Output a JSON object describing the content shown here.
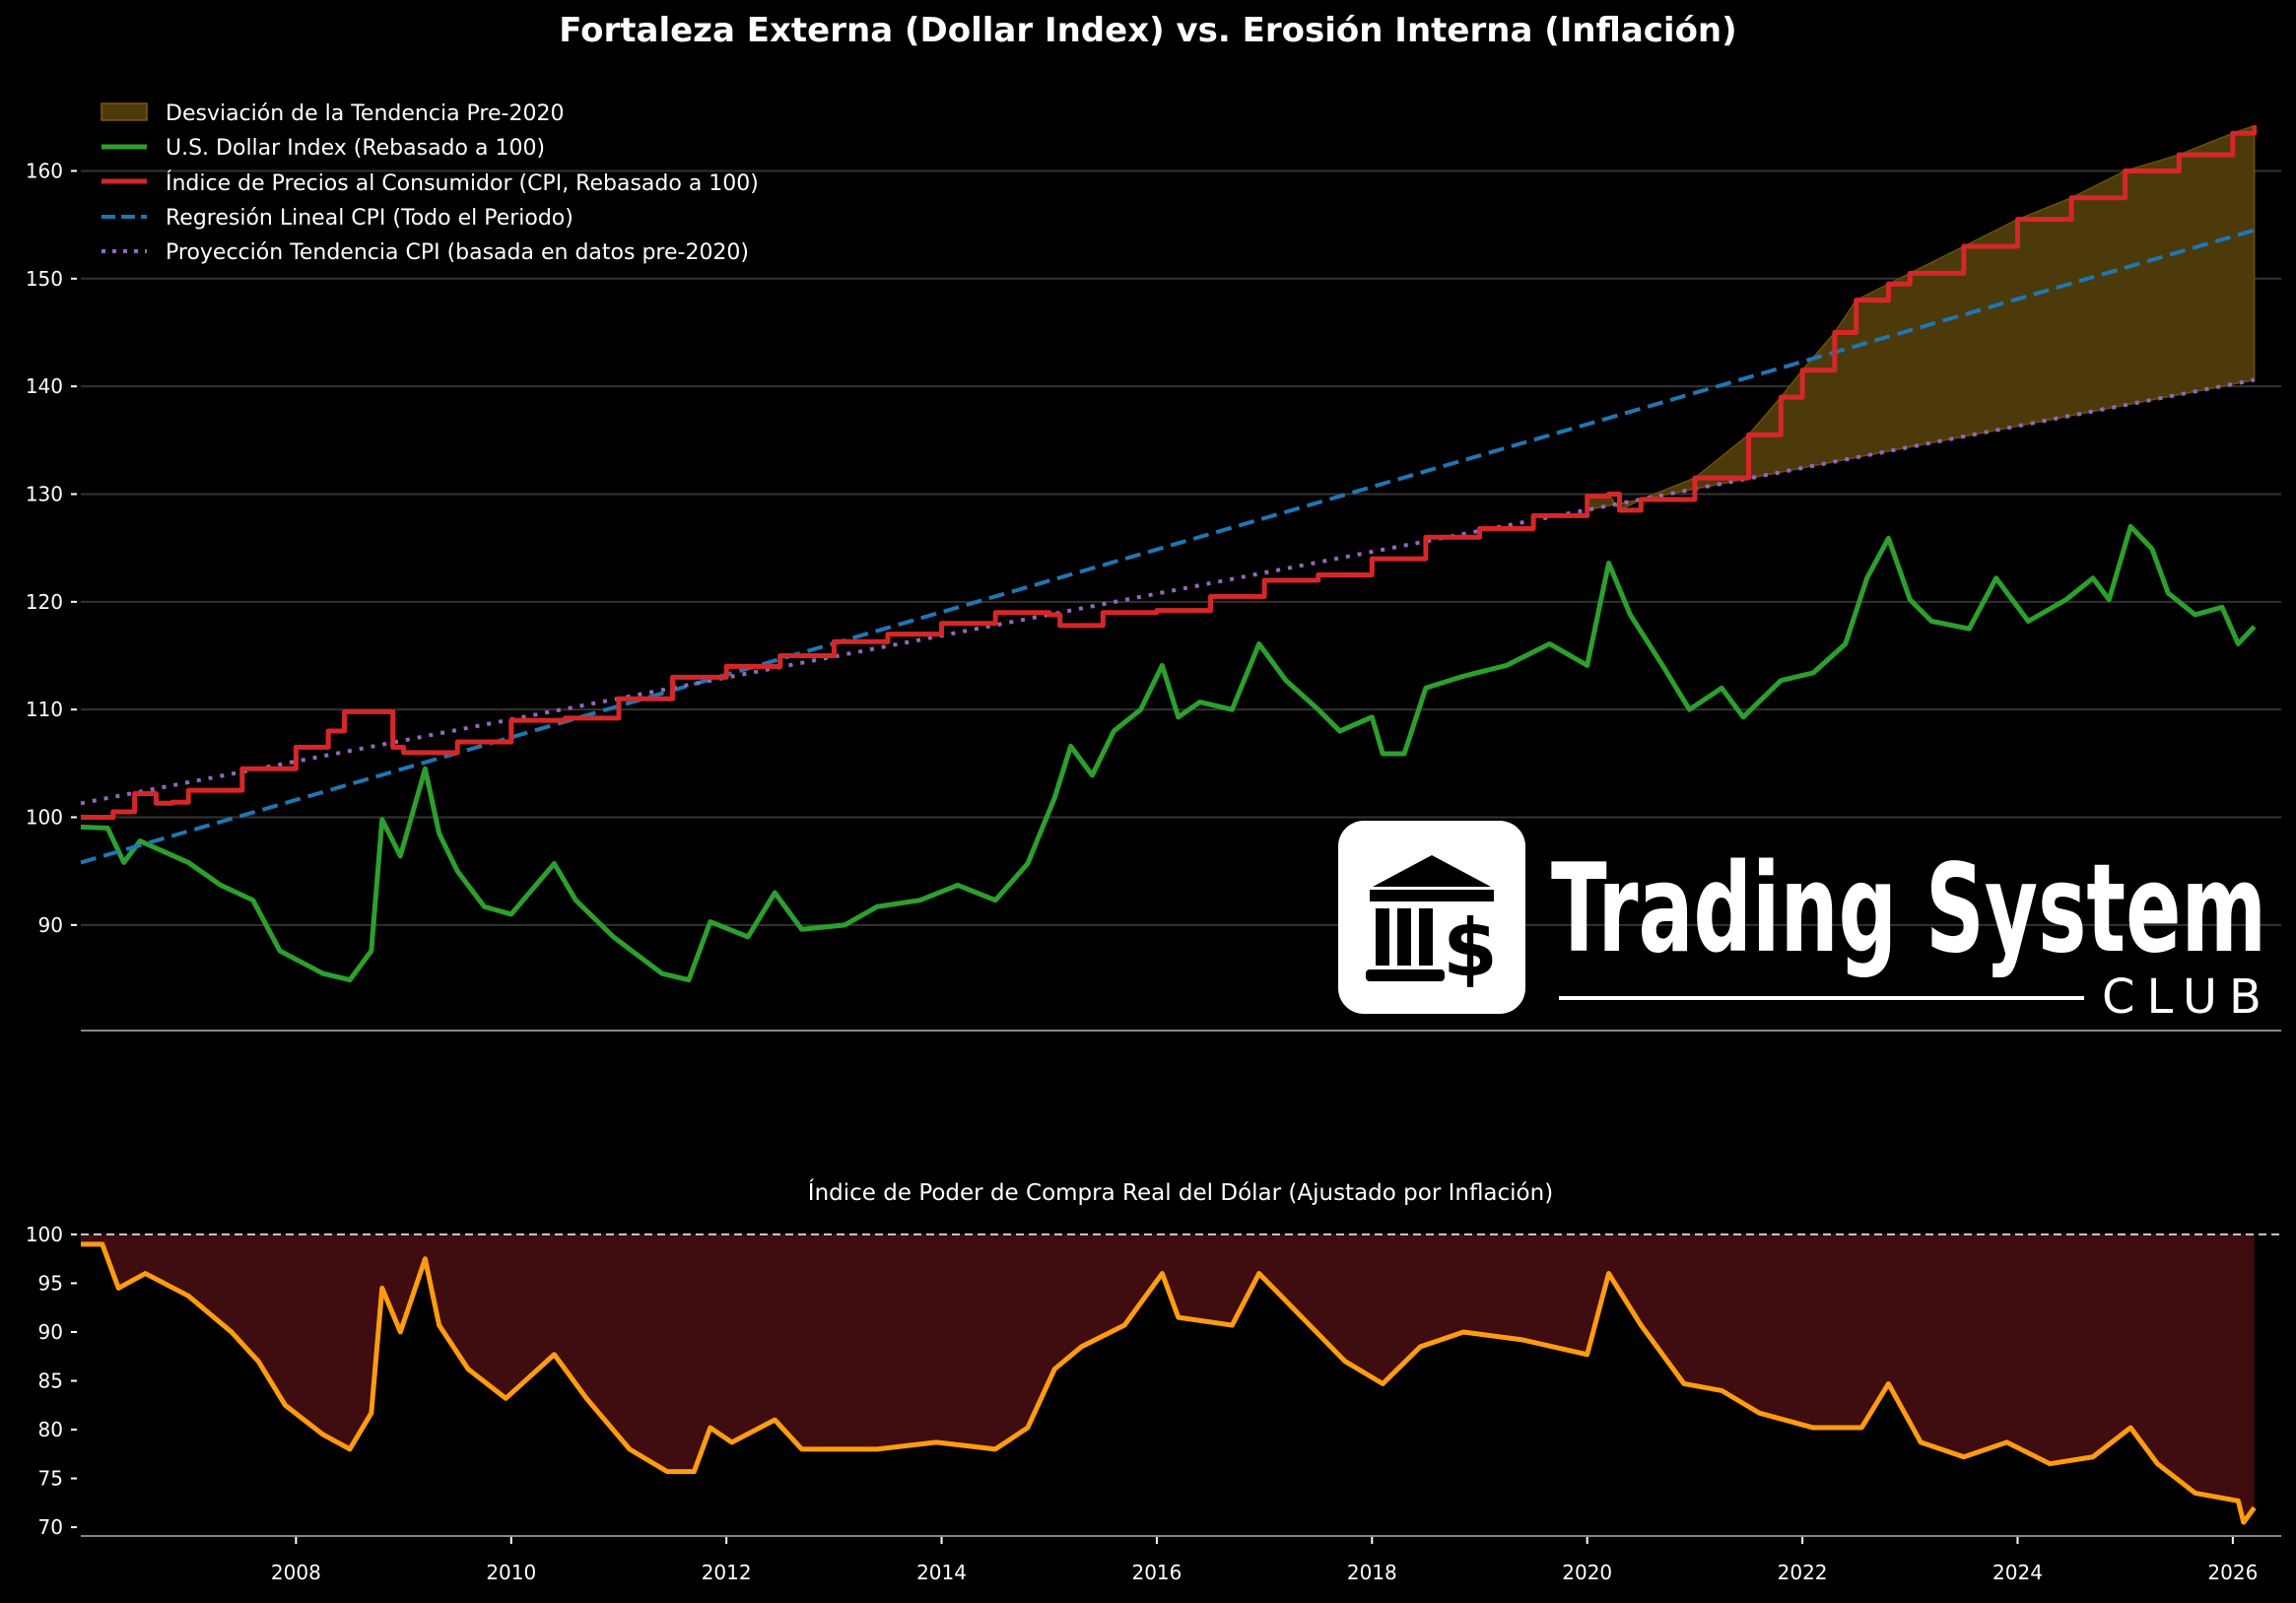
{
  "chart_data": [
    {
      "type": "line",
      "title": "Fortaleza Externa (Dollar Index) vs. Erosión Interna (Inflación)",
      "xlabel": "",
      "ylabel": "",
      "xlim": [
        2006.0,
        2026.45
      ],
      "ylim": [
        80.2,
        168
      ],
      "yticks": [
        90,
        100,
        110,
        120,
        130,
        140,
        150,
        160
      ],
      "grid": true,
      "legend_position": "top-left",
      "legend": [
        "Desviación de la Tendencia Pre-2020",
        "U.S. Dollar Index (Rebasado a 100)",
        "Índice de Precios al Consumidor (CPI, Rebasado a 100)",
        "Regresión Lineal CPI (Todo el Periodo)",
        "Proyección Tendencia CPI (basada en datos pre-2020)"
      ],
      "fill_between": {
        "name": "Desviación de la Tendencia Pre-2020",
        "from": 2020.0,
        "between": [
          "cpi",
          "trend_pre2020"
        ],
        "color": "#4d3a0a"
      },
      "series": [
        {
          "id": "dxy",
          "name": "U.S. Dollar Index (Rebasado a 100)",
          "color": "#2ca02c",
          "style": "solid",
          "x": [
            2006.0,
            2006.25,
            2006.4,
            2006.55,
            2007.0,
            2007.3,
            2007.6,
            2007.85,
            2008.25,
            2008.5,
            2008.7,
            2008.8,
            2008.97,
            2009.2,
            2009.33,
            2009.5,
            2009.75,
            2010.0,
            2010.4,
            2010.6,
            2010.95,
            2011.4,
            2011.65,
            2011.85,
            2012.2,
            2012.45,
            2012.7,
            2013.1,
            2013.4,
            2013.8,
            2014.15,
            2014.5,
            2014.8,
            2015.05,
            2015.2,
            2015.4,
            2015.6,
            2015.85,
            2016.05,
            2016.2,
            2016.4,
            2016.7,
            2016.95,
            2017.2,
            2017.5,
            2017.7,
            2018.0,
            2018.1,
            2018.3,
            2018.5,
            2018.85,
            2019.25,
            2019.65,
            2020.0,
            2020.2,
            2020.4,
            2020.7,
            2020.95,
            2021.25,
            2021.45,
            2021.8,
            2022.1,
            2022.4,
            2022.6,
            2022.8,
            2023.0,
            2023.2,
            2023.55,
            2023.8,
            2024.1,
            2024.45,
            2024.7,
            2024.85,
            2025.05,
            2025.25,
            2025.4,
            2025.65,
            2025.9,
            2026.05,
            2026.2
          ],
          "y": [
            99.1,
            99.0,
            95.8,
            97.8,
            95.8,
            93.7,
            92.3,
            87.6,
            85.5,
            84.9,
            87.6,
            99.8,
            96.4,
            104.5,
            98.5,
            95.0,
            91.7,
            91.0,
            95.7,
            92.3,
            88.9,
            85.5,
            84.9,
            90.3,
            88.9,
            93.0,
            89.6,
            90.0,
            91.7,
            92.3,
            93.7,
            92.3,
            95.7,
            101.8,
            106.6,
            103.9,
            108.0,
            110.0,
            114.1,
            109.3,
            110.7,
            110.0,
            116.1,
            112.7,
            110.0,
            108.0,
            109.3,
            105.9,
            105.9,
            112.0,
            113.1,
            114.1,
            116.1,
            114.1,
            123.6,
            118.8,
            114.1,
            110.0,
            112.0,
            109.3,
            112.7,
            113.4,
            116.1,
            122.2,
            125.9,
            120.2,
            118.2,
            117.5,
            122.2,
            118.2,
            120.2,
            122.2,
            120.2,
            127.0,
            124.9,
            120.8,
            118.8,
            119.5,
            116.1,
            117.7
          ]
        },
        {
          "id": "cpi",
          "name": "Índice de Precios al Consumidor (CPI, Rebasado a 100)",
          "color": "#d62728",
          "style": "solid",
          "x": [
            2006.0,
            2006.3,
            2006.5,
            2006.7,
            2006.85,
            2007.0,
            2007.5,
            2008.0,
            2008.3,
            2008.45,
            2008.7,
            2008.9,
            2009.0,
            2009.5,
            2010.0,
            2010.5,
            2011.0,
            2011.5,
            2012.0,
            2012.5,
            2013.0,
            2013.5,
            2014.0,
            2014.5,
            2015.0,
            2015.1,
            2015.5,
            2016.0,
            2016.5,
            2017.0,
            2017.5,
            2018.0,
            2018.5,
            2019.0,
            2019.5,
            2020.0,
            2020.2,
            2020.3,
            2020.5,
            2021.0,
            2021.5,
            2021.8,
            2022.0,
            2022.3,
            2022.5,
            2022.8,
            2023.0,
            2023.5,
            2024.0,
            2024.5,
            2025.0,
            2025.5,
            2026.0,
            2026.2
          ],
          "y": [
            100.0,
            100.5,
            102.2,
            101.3,
            101.4,
            102.5,
            104.5,
            106.5,
            108.0,
            109.8,
            109.8,
            106.5,
            106.0,
            107.0,
            109.0,
            109.2,
            111.0,
            113.0,
            114.0,
            115.0,
            116.3,
            117.0,
            118.0,
            119.0,
            118.8,
            117.8,
            119.0,
            119.2,
            120.5,
            122.0,
            122.5,
            124.0,
            126.0,
            126.8,
            128.0,
            129.8,
            130.0,
            128.5,
            129.5,
            131.5,
            135.5,
            139.0,
            141.5,
            145.0,
            148.0,
            149.5,
            150.5,
            153.0,
            155.5,
            157.5,
            160.0,
            161.5,
            163.5,
            164.2
          ]
        },
        {
          "id": "regression",
          "name": "Regresión Lineal CPI (Todo el Periodo)",
          "color": "#1f77b4",
          "style": "dashed",
          "x": [
            2006.0,
            2026.2
          ],
          "y": [
            95.8,
            154.5
          ]
        },
        {
          "id": "trend_pre2020",
          "name": "Proyección Tendencia CPI (basada en datos pre-2020)",
          "color": "#9467bd",
          "style": "dotted",
          "x": [
            2006.0,
            2026.2
          ],
          "y": [
            101.3,
            140.6
          ]
        }
      ]
    },
    {
      "type": "area",
      "title": "Índice de Poder de Compra Real del Dólar (Ajustado por Inflación)",
      "xlabel": "",
      "ylabel": "",
      "xlim": [
        2006.0,
        2026.45
      ],
      "ylim": [
        69.1,
        100.9
      ],
      "yticks": [
        70,
        75,
        80,
        85,
        90,
        95,
        100
      ],
      "xticks": [
        2008,
        2010,
        2012,
        2014,
        2016,
        2018,
        2020,
        2022,
        2024,
        2026
      ],
      "grid": false,
      "reference_line": {
        "y": 100,
        "style": "dashed",
        "color": "#cccccc"
      },
      "fill_to": 100,
      "fill_color": "#3f0d10",
      "series": [
        {
          "id": "purchasing_power",
          "color": "#ff9c0f",
          "x": [
            2006.0,
            2006.2,
            2006.35,
            2006.6,
            2007.0,
            2007.4,
            2007.65,
            2007.9,
            2008.25,
            2008.5,
            2008.7,
            2008.8,
            2008.97,
            2009.2,
            2009.33,
            2009.6,
            2009.95,
            2010.4,
            2010.7,
            2011.1,
            2011.45,
            2011.7,
            2011.85,
            2012.05,
            2012.45,
            2012.7,
            2013.4,
            2013.95,
            2014.5,
            2014.8,
            2015.05,
            2015.3,
            2015.7,
            2016.05,
            2016.2,
            2016.7,
            2016.95,
            2017.35,
            2017.75,
            2018.1,
            2018.45,
            2018.85,
            2019.4,
            2020.0,
            2020.2,
            2020.5,
            2020.9,
            2021.25,
            2021.6,
            2022.1,
            2022.55,
            2022.8,
            2023.1,
            2023.5,
            2023.9,
            2024.3,
            2024.7,
            2025.05,
            2025.3,
            2025.65,
            2026.05,
            2026.1,
            2026.2
          ],
          "y": [
            99.0,
            99.0,
            94.5,
            96.0,
            93.7,
            90.0,
            87.0,
            82.5,
            79.5,
            78.0,
            81.7,
            94.5,
            90.0,
            97.5,
            90.7,
            86.2,
            83.2,
            87.7,
            83.2,
            78.0,
            75.7,
            75.7,
            80.2,
            78.7,
            81.0,
            78.0,
            78.0,
            78.7,
            78.0,
            80.2,
            86.2,
            88.5,
            90.7,
            96.0,
            91.5,
            90.7,
            96.0,
            91.5,
            87.0,
            84.7,
            88.5,
            90.0,
            89.2,
            87.7,
            96.0,
            90.7,
            84.7,
            84.0,
            81.7,
            80.2,
            80.2,
            84.7,
            78.7,
            77.2,
            78.7,
            76.5,
            77.2,
            80.2,
            76.5,
            73.5,
            72.7,
            70.5,
            72.0
          ]
        }
      ]
    }
  ],
  "logo": {
    "name": "Trading System",
    "sub": "CLUB",
    "icon": "bank-dollar-icon"
  }
}
